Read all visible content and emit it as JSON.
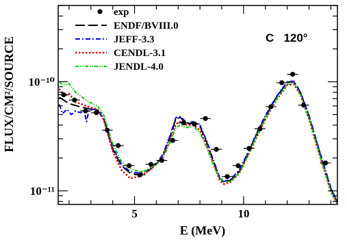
{
  "chart_data": {
    "type": "line",
    "title": "",
    "xlabel": "E (MeV)",
    "ylabel": "FLUX/CM²/SOURCE",
    "xlim": [
      1.5,
      14.3
    ],
    "ylim": [
      7.5e-12,
      5e-10
    ],
    "yscale": "log",
    "grid": false,
    "legend_position": "top-left",
    "annotation": "C   120°",
    "x_ticks": [
      {
        "value": 5,
        "label": "5"
      },
      {
        "value": 10,
        "label": "10"
      }
    ],
    "y_ticks": [
      {
        "value": 1e-11,
        "label": "10⁻¹¹"
      },
      {
        "value": 1e-10,
        "label": "10⁻¹⁰"
      }
    ],
    "series": [
      {
        "name": "exp",
        "kind": "points",
        "color": "#000000",
        "points": [
          {
            "x": 1.75,
            "y": 7.6e-11,
            "xerr": 0.25
          },
          {
            "x": 2.25,
            "y": 6.8e-11,
            "xerr": 0.25
          },
          {
            "x": 2.75,
            "y": 5.4e-11,
            "xerr": 0.25
          },
          {
            "x": 3.25,
            "y": 5.2e-11,
            "xerr": 0.25
          },
          {
            "x": 3.75,
            "y": 3.6e-11,
            "xerr": 0.25
          },
          {
            "x": 4.25,
            "y": 2.6e-11,
            "xerr": 0.25
          },
          {
            "x": 4.75,
            "y": 1.7e-11,
            "xerr": 0.25
          },
          {
            "x": 5.25,
            "y": 1.4e-11,
            "xerr": 0.25
          },
          {
            "x": 5.75,
            "y": 1.75e-11,
            "xerr": 0.25
          },
          {
            "x": 6.25,
            "y": 1.9e-11,
            "xerr": 0.25
          },
          {
            "x": 6.75,
            "y": 2.9e-11,
            "xerr": 0.25
          },
          {
            "x": 7.25,
            "y": 4.2e-11,
            "xerr": 0.25
          },
          {
            "x": 7.75,
            "y": 4.1e-11,
            "xerr": 0.25
          },
          {
            "x": 8.25,
            "y": 4.6e-11,
            "xerr": 0.25
          },
          {
            "x": 8.75,
            "y": 2.4e-11,
            "xerr": 0.25
          },
          {
            "x": 9.25,
            "y": 1.35e-11,
            "xerr": 0.25
          },
          {
            "x": 9.75,
            "y": 1.7e-11,
            "xerr": 0.25
          },
          {
            "x": 10.25,
            "y": 2.45e-11,
            "xerr": 0.25
          },
          {
            "x": 10.75,
            "y": 3.7e-11,
            "xerr": 0.25
          },
          {
            "x": 11.25,
            "y": 5.9e-11,
            "xerr": 0.25
          },
          {
            "x": 11.75,
            "y": 9.8e-11,
            "xerr": 0.25
          },
          {
            "x": 12.25,
            "y": 1.17e-10,
            "xerr": 0.25
          },
          {
            "x": 12.75,
            "y": 6.1e-11,
            "xerr": 0.25
          },
          {
            "x": 13.75,
            "y": 1.8e-11,
            "xerr": 0.25
          }
        ]
      },
      {
        "name": "ENDF/BVIII.0",
        "kind": "line",
        "style": "longdash",
        "color": "#000000",
        "points": [
          {
            "x": 1.55,
            "y": 7.2e-11
          },
          {
            "x": 2.0,
            "y": 6.3e-11
          },
          {
            "x": 2.5,
            "y": 5.9e-11
          },
          {
            "x": 3.0,
            "y": 5.6e-11
          },
          {
            "x": 3.3,
            "y": 5.5e-11
          },
          {
            "x": 3.6,
            "y": 4.5e-11
          },
          {
            "x": 4.0,
            "y": 2.4e-11
          },
          {
            "x": 4.4,
            "y": 1.7e-11
          },
          {
            "x": 4.8,
            "y": 1.45e-11
          },
          {
            "x": 5.2,
            "y": 1.4e-11
          },
          {
            "x": 5.6,
            "y": 1.5e-11
          },
          {
            "x": 6.0,
            "y": 1.75e-11
          },
          {
            "x": 6.3,
            "y": 2.1e-11
          },
          {
            "x": 6.6,
            "y": 3e-11
          },
          {
            "x": 6.9,
            "y": 4.6e-11
          },
          {
            "x": 7.1,
            "y": 4.7e-11
          },
          {
            "x": 7.4,
            "y": 4.1e-11
          },
          {
            "x": 7.7,
            "y": 4.2e-11
          },
          {
            "x": 8.0,
            "y": 3.9e-11
          },
          {
            "x": 8.3,
            "y": 2.8e-11
          },
          {
            "x": 8.6,
            "y": 1.9e-11
          },
          {
            "x": 8.9,
            "y": 1.3e-11
          },
          {
            "x": 9.1,
            "y": 1.2e-11
          },
          {
            "x": 9.4,
            "y": 1.25e-11
          },
          {
            "x": 9.8,
            "y": 1.5e-11
          },
          {
            "x": 10.2,
            "y": 2.2e-11
          },
          {
            "x": 10.6,
            "y": 3.3e-11
          },
          {
            "x": 11.0,
            "y": 4.8e-11
          },
          {
            "x": 11.5,
            "y": 7.2e-11
          },
          {
            "x": 12.0,
            "y": 9.9e-11
          },
          {
            "x": 12.3,
            "y": 1e-10
          },
          {
            "x": 12.6,
            "y": 8e-11
          },
          {
            "x": 13.0,
            "y": 4.8e-11
          },
          {
            "x": 13.5,
            "y": 2.2e-11
          },
          {
            "x": 14.0,
            "y": 1.05e-11
          },
          {
            "x": 14.3,
            "y": 7.8e-12
          }
        ]
      },
      {
        "name": "JEFF-3.3",
        "kind": "line",
        "style": "dashdot",
        "color": "#0000ee",
        "points": [
          {
            "x": 1.55,
            "y": 6.2e-11
          },
          {
            "x": 1.7,
            "y": 5.1e-11
          },
          {
            "x": 1.9,
            "y": 5.6e-11
          },
          {
            "x": 2.1,
            "y": 5e-11
          },
          {
            "x": 2.3,
            "y": 5.4e-11
          },
          {
            "x": 2.5,
            "y": 5.2e-11
          },
          {
            "x": 2.7,
            "y": 5.3e-11
          },
          {
            "x": 2.8,
            "y": 4.3e-11
          },
          {
            "x": 2.9,
            "y": 5.4e-11
          },
          {
            "x": 3.1,
            "y": 5.6e-11
          },
          {
            "x": 3.3,
            "y": 5.5e-11
          },
          {
            "x": 3.6,
            "y": 4.6e-11
          },
          {
            "x": 4.0,
            "y": 2.5e-11
          },
          {
            "x": 4.4,
            "y": 1.75e-11
          },
          {
            "x": 4.8,
            "y": 1.5e-11
          },
          {
            "x": 5.2,
            "y": 1.45e-11
          },
          {
            "x": 5.6,
            "y": 1.55e-11
          },
          {
            "x": 6.0,
            "y": 1.8e-11
          },
          {
            "x": 6.3,
            "y": 2.15e-11
          },
          {
            "x": 6.6,
            "y": 3.1e-11
          },
          {
            "x": 6.9,
            "y": 4.7e-11
          },
          {
            "x": 7.1,
            "y": 4.8e-11
          },
          {
            "x": 7.4,
            "y": 4.2e-11
          },
          {
            "x": 7.7,
            "y": 4.3e-11
          },
          {
            "x": 8.0,
            "y": 4e-11
          },
          {
            "x": 8.3,
            "y": 2.9e-11
          },
          {
            "x": 8.6,
            "y": 1.95e-11
          },
          {
            "x": 8.9,
            "y": 1.33e-11
          },
          {
            "x": 9.1,
            "y": 1.22e-11
          },
          {
            "x": 9.4,
            "y": 1.27e-11
          },
          {
            "x": 9.8,
            "y": 1.55e-11
          },
          {
            "x": 10.2,
            "y": 2.25e-11
          },
          {
            "x": 10.6,
            "y": 3.4e-11
          },
          {
            "x": 11.0,
            "y": 4.9e-11
          },
          {
            "x": 11.5,
            "y": 7.3e-11
          },
          {
            "x": 12.0,
            "y": 1e-10
          },
          {
            "x": 12.3,
            "y": 1.01e-10
          },
          {
            "x": 12.6,
            "y": 8.1e-11
          },
          {
            "x": 13.0,
            "y": 4.9e-11
          },
          {
            "x": 13.5,
            "y": 2.25e-11
          },
          {
            "x": 14.0,
            "y": 1.07e-11
          },
          {
            "x": 14.3,
            "y": 7.9e-12
          }
        ]
      },
      {
        "name": "CENDL-3.1",
        "kind": "line",
        "style": "dotted",
        "color": "#e00000",
        "points": [
          {
            "x": 1.55,
            "y": 8.6e-11
          },
          {
            "x": 1.8,
            "y": 7.4e-11
          },
          {
            "x": 2.0,
            "y": 7.8e-11
          },
          {
            "x": 2.3,
            "y": 6.5e-11
          },
          {
            "x": 2.6,
            "y": 6.2e-11
          },
          {
            "x": 3.0,
            "y": 5.8e-11
          },
          {
            "x": 3.3,
            "y": 5.6e-11
          },
          {
            "x": 3.6,
            "y": 4.4e-11
          },
          {
            "x": 4.0,
            "y": 2.3e-11
          },
          {
            "x": 4.4,
            "y": 1.55e-11
          },
          {
            "x": 4.8,
            "y": 1.3e-11
          },
          {
            "x": 5.2,
            "y": 1.35e-11
          },
          {
            "x": 5.6,
            "y": 1.5e-11
          },
          {
            "x": 6.0,
            "y": 1.75e-11
          },
          {
            "x": 6.3,
            "y": 2.05e-11
          },
          {
            "x": 6.6,
            "y": 2.8e-11
          },
          {
            "x": 6.9,
            "y": 4.1e-11
          },
          {
            "x": 7.1,
            "y": 4.3e-11
          },
          {
            "x": 7.4,
            "y": 4e-11
          },
          {
            "x": 7.7,
            "y": 4e-11
          },
          {
            "x": 8.0,
            "y": 3.6e-11
          },
          {
            "x": 8.3,
            "y": 2.6e-11
          },
          {
            "x": 8.6,
            "y": 1.8e-11
          },
          {
            "x": 8.9,
            "y": 1.25e-11
          },
          {
            "x": 9.1,
            "y": 1.15e-11
          },
          {
            "x": 9.4,
            "y": 1.2e-11
          },
          {
            "x": 9.8,
            "y": 1.45e-11
          },
          {
            "x": 10.2,
            "y": 2.1e-11
          },
          {
            "x": 10.6,
            "y": 3.1e-11
          },
          {
            "x": 11.0,
            "y": 4.5e-11
          },
          {
            "x": 11.5,
            "y": 6.8e-11
          },
          {
            "x": 12.0,
            "y": 9.3e-11
          },
          {
            "x": 12.3,
            "y": 9.5e-11
          },
          {
            "x": 12.6,
            "y": 7.6e-11
          },
          {
            "x": 13.0,
            "y": 4.5e-11
          },
          {
            "x": 13.5,
            "y": 2.05e-11
          },
          {
            "x": 14.0,
            "y": 9.8e-12
          },
          {
            "x": 14.3,
            "y": 7.6e-12
          }
        ]
      },
      {
        "name": "JENDL-4.0",
        "kind": "line",
        "style": "dashdotdot",
        "color": "#00cc00",
        "points": [
          {
            "x": 1.55,
            "y": 9.8e-11
          },
          {
            "x": 1.8,
            "y": 9.3e-11
          },
          {
            "x": 2.0,
            "y": 9.6e-11
          },
          {
            "x": 2.3,
            "y": 8e-11
          },
          {
            "x": 2.6,
            "y": 7.2e-11
          },
          {
            "x": 3.0,
            "y": 6.4e-11
          },
          {
            "x": 3.3,
            "y": 6e-11
          },
          {
            "x": 3.6,
            "y": 4.9e-11
          },
          {
            "x": 4.0,
            "y": 2.7e-11
          },
          {
            "x": 4.4,
            "y": 1.85e-11
          },
          {
            "x": 4.8,
            "y": 1.6e-11
          },
          {
            "x": 5.2,
            "y": 1.5e-11
          },
          {
            "x": 5.6,
            "y": 1.55e-11
          },
          {
            "x": 6.0,
            "y": 1.75e-11
          },
          {
            "x": 6.3,
            "y": 2e-11
          },
          {
            "x": 6.6,
            "y": 2.7e-11
          },
          {
            "x": 6.9,
            "y": 3.8e-11
          },
          {
            "x": 7.1,
            "y": 4e-11
          },
          {
            "x": 7.4,
            "y": 3.8e-11
          },
          {
            "x": 7.7,
            "y": 3.9e-11
          },
          {
            "x": 8.0,
            "y": 3.4e-11
          },
          {
            "x": 8.3,
            "y": 2.5e-11
          },
          {
            "x": 8.6,
            "y": 1.75e-11
          },
          {
            "x": 8.9,
            "y": 1.3e-11
          },
          {
            "x": 9.1,
            "y": 1.2e-11
          },
          {
            "x": 9.4,
            "y": 1.22e-11
          },
          {
            "x": 9.8,
            "y": 1.45e-11
          },
          {
            "x": 10.2,
            "y": 2.1e-11
          },
          {
            "x": 10.6,
            "y": 3.2e-11
          },
          {
            "x": 11.0,
            "y": 4.6e-11
          },
          {
            "x": 11.5,
            "y": 6.9e-11
          },
          {
            "x": 12.0,
            "y": 9.5e-11
          },
          {
            "x": 12.3,
            "y": 9.7e-11
          },
          {
            "x": 12.6,
            "y": 7.7e-11
          },
          {
            "x": 13.0,
            "y": 4.6e-11
          },
          {
            "x": 13.5,
            "y": 2.1e-11
          },
          {
            "x": 14.0,
            "y": 1e-11
          },
          {
            "x": 14.3,
            "y": 7.7e-12
          }
        ]
      }
    ]
  }
}
